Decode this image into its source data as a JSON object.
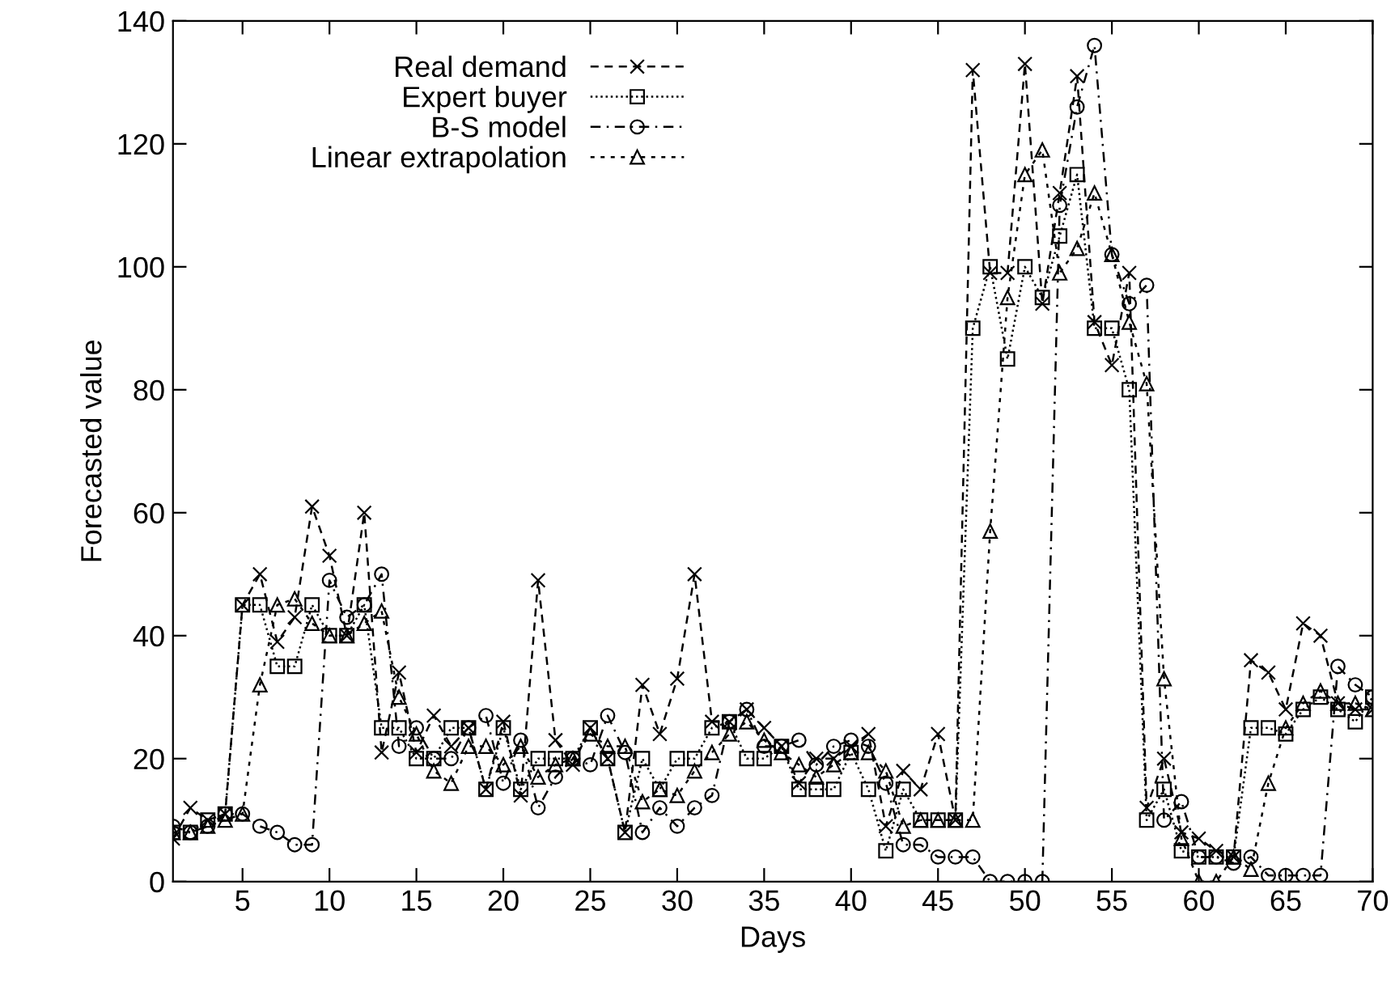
{
  "chart_data": {
    "type": "line",
    "xlabel": "Days",
    "ylabel": "Forecasted value",
    "x": [
      1,
      2,
      3,
      4,
      5,
      6,
      7,
      8,
      9,
      10,
      11,
      12,
      13,
      14,
      15,
      16,
      17,
      18,
      19,
      20,
      21,
      22,
      23,
      24,
      25,
      26,
      27,
      28,
      29,
      30,
      31,
      32,
      33,
      34,
      35,
      36,
      37,
      38,
      39,
      40,
      41,
      42,
      43,
      44,
      45,
      46,
      47,
      48,
      49,
      50,
      51,
      52,
      53,
      54,
      55,
      56,
      57,
      58,
      59,
      60,
      61,
      62,
      63,
      64,
      65,
      66,
      67,
      68,
      69,
      70
    ],
    "xlim": [
      1,
      70
    ],
    "xticks": [
      5,
      10,
      15,
      20,
      25,
      30,
      35,
      40,
      45,
      50,
      55,
      60,
      65,
      70
    ],
    "ylim": [
      0,
      140
    ],
    "yticks": [
      0,
      20,
      40,
      60,
      80,
      100,
      120,
      140
    ],
    "grid": false,
    "legend": "top left",
    "series": [
      {
        "name": "Real demand",
        "color": "#000000",
        "marker": "cross",
        "line_style": "dashed",
        "values": [
          7,
          12,
          10,
          11,
          45,
          50,
          39,
          43,
          61,
          53,
          40,
          60,
          21,
          34,
          21,
          27,
          22,
          25,
          15,
          26,
          14,
          49,
          23,
          19,
          25,
          20,
          8,
          32,
          24,
          33,
          50,
          26,
          26,
          28,
          25,
          22,
          16,
          20,
          20,
          22,
          24,
          9,
          18,
          15,
          24,
          10,
          132,
          99,
          99,
          133,
          94,
          112,
          131,
          91,
          84,
          99,
          12,
          20,
          8,
          7,
          5,
          4,
          36,
          34,
          28,
          42,
          40,
          29,
          28,
          28
        ]
      },
      {
        "name": "Expert buyer",
        "color": "#000000",
        "marker": "square",
        "line_style": "dotted",
        "values": [
          8,
          8,
          10,
          11,
          45,
          45,
          35,
          35,
          45,
          40,
          40,
          45,
          25,
          25,
          20,
          20,
          25,
          25,
          15,
          25,
          15,
          20,
          20,
          20,
          25,
          20,
          8,
          20,
          15,
          20,
          20,
          25,
          26,
          20,
          20,
          22,
          15,
          15,
          15,
          21,
          15,
          5,
          15,
          10,
          10,
          10,
          90,
          100,
          85,
          100,
          95,
          105,
          115,
          90,
          90,
          80,
          10,
          15,
          5,
          4,
          4,
          4,
          25,
          25,
          24,
          28,
          30,
          28,
          26,
          30
        ]
      },
      {
        "name": "B-S model",
        "color": "#000000",
        "marker": "circle",
        "line_style": "dashdot",
        "values": [
          9,
          8,
          9,
          11,
          11,
          9,
          8,
          6,
          6,
          49,
          43,
          45,
          50,
          22,
          25,
          20,
          20,
          25,
          27,
          16,
          23,
          12,
          17,
          20,
          19,
          27,
          21,
          8,
          12,
          9,
          12,
          14,
          26,
          28,
          22,
          22,
          23,
          19,
          22,
          23,
          22,
          16,
          6,
          6,
          4,
          4,
          4,
          0,
          0,
          0,
          0,
          110,
          126,
          136,
          102,
          94,
          97,
          10,
          13,
          4,
          4,
          3,
          4,
          1,
          1,
          1,
          1,
          35,
          32,
          30
        ]
      },
      {
        "name": "Linear extrapolation",
        "color": "#000000",
        "marker": "triangle",
        "line_style": "loosedash",
        "values": [
          8,
          8,
          9,
          10,
          11,
          32,
          45,
          46,
          42,
          40,
          40,
          42,
          44,
          30,
          24,
          18,
          16,
          22,
          22,
          19,
          22,
          17,
          19,
          20,
          24,
          22,
          22,
          13,
          15,
          14,
          18,
          21,
          24,
          26,
          23,
          21,
          19,
          17,
          19,
          21,
          21,
          18,
          9,
          10,
          10,
          10,
          10,
          57,
          95,
          115,
          119,
          99,
          103,
          112,
          102,
          91,
          81,
          33,
          7,
          0,
          0,
          4,
          2,
          16,
          25,
          29,
          31,
          29,
          29,
          28
        ]
      }
    ]
  }
}
